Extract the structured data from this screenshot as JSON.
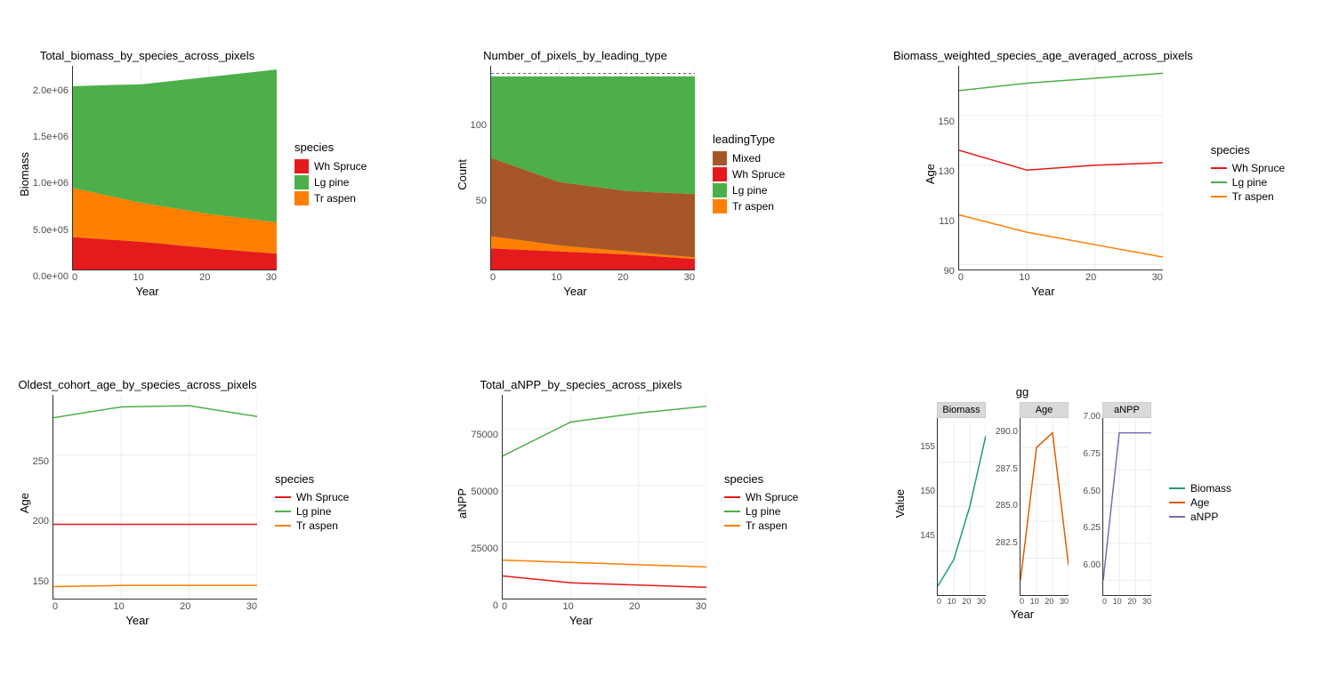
{
  "xaxis_label": "Year",
  "xticks": [
    0,
    10,
    20,
    30
  ],
  "colors": {
    "wh_spruce": "#E41A1C",
    "lg_pine": "#4DAF4A",
    "tr_aspen": "#FF7F00",
    "mixed": "#A65628",
    "biomass_f": "#1B9E77",
    "age_f": "#D95F02",
    "anpp_f": "#7570B3",
    "grid": "#ebebeb",
    "bg": "#ffffff"
  },
  "species_legend": {
    "title": "species",
    "items": [
      {
        "label": "Wh Spruce",
        "color_key": "wh_spruce"
      },
      {
        "label": "Lg pine",
        "color_key": "lg_pine"
      },
      {
        "label": "Tr aspen",
        "color_key": "tr_aspen"
      }
    ]
  },
  "leading_legend": {
    "title": "leadingType",
    "items": [
      {
        "label": "Mixed",
        "color_key": "mixed"
      },
      {
        "label": "Wh Spruce",
        "color_key": "wh_spruce"
      },
      {
        "label": "Lg pine",
        "color_key": "lg_pine"
      },
      {
        "label": "Tr aspen",
        "color_key": "tr_aspen"
      }
    ]
  },
  "gg_legend": {
    "items": [
      {
        "label": "Biomass",
        "color_key": "biomass_f"
      },
      {
        "label": "Age",
        "color_key": "age_f"
      },
      {
        "label": "aNPP",
        "color_key": "anpp_f"
      }
    ]
  },
  "chart1": {
    "title": "Total_biomass_by_species_across_pixels",
    "ylabel": "Biomass",
    "ylim": [
      0,
      2200000
    ],
    "yticks": [
      "0.0e+00",
      "5.0e+05",
      "1.0e+06",
      "1.5e+06",
      "2.0e+06"
    ],
    "ytick_vals": [
      0,
      500000,
      1000000,
      1500000,
      2000000
    ],
    "stack_order": [
      "wh_spruce",
      "tr_aspen",
      "lg_pine"
    ],
    "series": {
      "wh_spruce": [
        350000,
        300000,
        230000,
        170000
      ],
      "tr_aspen": [
        530000,
        420000,
        370000,
        340000
      ],
      "lg_pine": [
        1100000,
        1280000,
        1480000,
        1650000
      ]
    }
  },
  "chart2": {
    "title": "Number_of_pixels_by_leading_type",
    "ylabel": "Count",
    "ylim": [
      0,
      135
    ],
    "yticks": [
      "50",
      "100"
    ],
    "ytick_vals": [
      50,
      100
    ],
    "dashed_at": 130,
    "stack_order": [
      "wh_spruce",
      "tr_aspen",
      "mixed",
      "lg_pine"
    ],
    "series": {
      "wh_spruce": [
        14,
        12,
        10,
        7
      ],
      "tr_aspen": [
        8,
        4,
        2,
        1
      ],
      "mixed": [
        52,
        42,
        40,
        42
      ],
      "lg_pine": [
        54,
        70,
        76,
        78
      ]
    }
  },
  "chart3": {
    "title": "Biomass_weighted_species_age_averaged_across_pixels",
    "ylabel": "Age",
    "ylim": [
      88,
      170
    ],
    "yticks": [
      "90",
      "110",
      "130",
      "150"
    ],
    "ytick_vals": [
      90,
      110,
      130,
      150
    ],
    "series": {
      "wh_spruce": [
        136,
        128,
        130,
        131
      ],
      "lg_pine": [
        160,
        163,
        165,
        167
      ],
      "tr_aspen": [
        110,
        103,
        98,
        93
      ]
    }
  },
  "chart4": {
    "title": "Oldest_cohort_age_by_species_across_pixels",
    "ylabel": "Age",
    "ylim": [
      130,
      300
    ],
    "yticks": [
      "150",
      "200",
      "250"
    ],
    "ytick_vals": [
      150,
      200,
      250
    ],
    "series": {
      "wh_spruce": [
        192,
        192,
        192,
        192
      ],
      "lg_pine": [
        281,
        290,
        291,
        282
      ],
      "tr_aspen": [
        140,
        141,
        141,
        141
      ]
    }
  },
  "chart5": {
    "title": "Total_aNPP_by_species_across_pixels",
    "ylabel": "aNPP",
    "ylim": [
      0,
      90000
    ],
    "yticks": [
      "0",
      "25000",
      "50000",
      "75000"
    ],
    "ytick_vals": [
      0,
      25000,
      50000,
      75000
    ],
    "series": {
      "wh_spruce": [
        10000,
        7000,
        6000,
        5000
      ],
      "lg_pine": [
        63000,
        78000,
        82000,
        85000
      ],
      "tr_aspen": [
        17000,
        16000,
        15000,
        14000
      ]
    }
  },
  "chart6": {
    "title": "gg",
    "ylabel": "Value",
    "xlabel": "Year",
    "facets": [
      {
        "strip": "Biomass",
        "color_key": "biomass_f",
        "ylim": [
          140,
          160
        ],
        "yticks": [
          "145",
          "150",
          "155"
        ],
        "ytick_vals": [
          145,
          150,
          155
        ],
        "values": [
          141,
          144,
          150,
          158
        ]
      },
      {
        "strip": "Age",
        "color_key": "age_f",
        "ylim": [
          280,
          292
        ],
        "yticks": [
          "282.5",
          "285.0",
          "287.5",
          "290.0"
        ],
        "ytick_vals": [
          282.5,
          285.0,
          287.5,
          290.0
        ],
        "values": [
          281,
          290,
          291,
          282
        ]
      },
      {
        "strip": "aNPP",
        "color_key": "anpp_f",
        "ylim": [
          5.9,
          7.1
        ],
        "yticks": [
          "6.00",
          "6.25",
          "6.50",
          "6.75",
          "7.00"
        ],
        "ytick_vals": [
          6.0,
          6.25,
          6.5,
          6.75,
          7.0
        ],
        "values": [
          6.0,
          7.0,
          7.0,
          7.0
        ]
      }
    ]
  }
}
